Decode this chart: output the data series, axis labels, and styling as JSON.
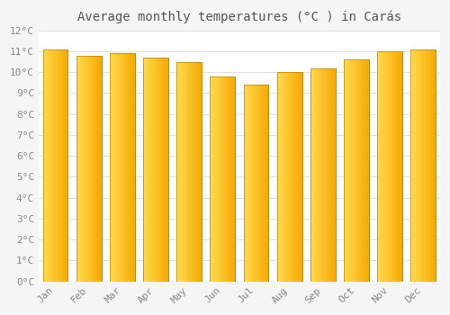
{
  "title": "Average monthly temperatures (°C ) in Carás",
  "months": [
    "Jan",
    "Feb",
    "Mar",
    "Apr",
    "May",
    "Jun",
    "Jul",
    "Aug",
    "Sep",
    "Oct",
    "Nov",
    "Dec"
  ],
  "values": [
    11.1,
    10.8,
    10.9,
    10.7,
    10.5,
    9.8,
    9.4,
    10.0,
    10.2,
    10.6,
    11.0,
    11.1
  ],
  "bar_color_left": "#FFD84D",
  "bar_color_right": "#F5A800",
  "bar_border_color": "#B8860B",
  "background_color": "#f5f5f5",
  "plot_bg_color": "#ffffff",
  "ylim": [
    0,
    12
  ],
  "yticks": [
    0,
    1,
    2,
    3,
    4,
    5,
    6,
    7,
    8,
    9,
    10,
    11,
    12
  ],
  "ytick_labels": [
    "0°C",
    "1°C",
    "2°C",
    "3°C",
    "4°C",
    "5°C",
    "6°C",
    "7°C",
    "8°C",
    "9°C",
    "10°C",
    "11°C",
    "12°C"
  ],
  "title_fontsize": 10,
  "tick_fontsize": 8,
  "grid_color": "#e0e0e0",
  "figsize": [
    5.0,
    3.5
  ],
  "dpi": 100
}
